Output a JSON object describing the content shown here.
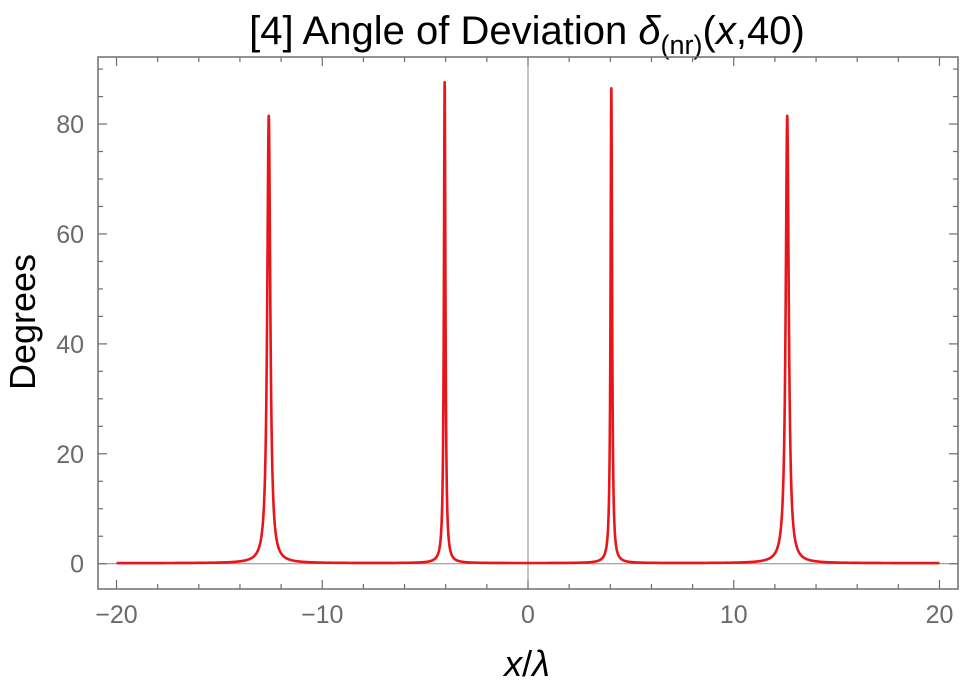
{
  "chart_data": {
    "type": "line",
    "title": {
      "prefix": "[4] Angle of Deviation ",
      "symbol": "δ",
      "subscript": "(nr)",
      "args_open": "(",
      "args_var": "x",
      "args_rest": ",40)"
    },
    "xlabel": {
      "var": "x",
      "slash": "/",
      "unit": "λ"
    },
    "ylabel": "Degrees",
    "xlim": [
      -20.9,
      20.9
    ],
    "ylim": [
      -4.6,
      92.2
    ],
    "x_ticks": [
      {
        "value": -20,
        "label": "−20"
      },
      {
        "value": -10,
        "label": "−10"
      },
      {
        "value": 0,
        "label": "0"
      },
      {
        "value": 10,
        "label": "10"
      },
      {
        "value": 20,
        "label": "20"
      }
    ],
    "y_ticks": [
      {
        "value": 0,
        "label": "0"
      },
      {
        "value": 20,
        "label": "20"
      },
      {
        "value": 40,
        "label": "40"
      },
      {
        "value": 60,
        "label": "60"
      },
      {
        "value": 80,
        "label": "80"
      }
    ],
    "grid": false,
    "series": [
      {
        "color": "#e8161a",
        "baseline": 0.1,
        "peaks": [
          {
            "x": -12.6,
            "y": 81.5,
            "half_width": 0.09
          },
          {
            "x": -4.05,
            "y": 87.6,
            "half_width": 0.045
          },
          {
            "x": 4.05,
            "y": 86.5,
            "half_width": 0.045
          },
          {
            "x": 12.6,
            "y": 81.5,
            "half_width": 0.09
          }
        ],
        "x_range": [
          -20,
          20
        ]
      }
    ]
  }
}
